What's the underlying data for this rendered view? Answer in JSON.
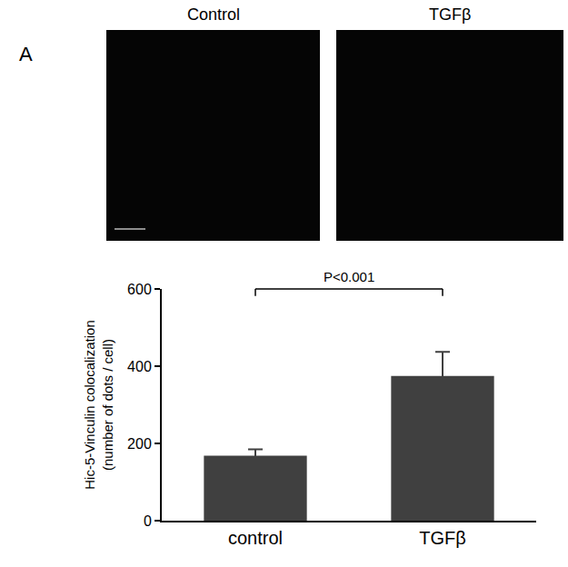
{
  "panel_label": "A",
  "images": [
    {
      "title": "Control"
    },
    {
      "title": "TGFβ"
    }
  ],
  "chart_data": {
    "type": "bar",
    "ylabel": "Hic-5-Vinculin colocalization\n(number of dots / cell)",
    "categories": [
      "control",
      "TGFβ"
    ],
    "values": [
      168,
      375
    ],
    "errors": [
      17,
      62
    ],
    "color": "#404040",
    "ylim": [
      0,
      600
    ],
    "yticks": [
      0,
      200,
      400,
      600
    ],
    "grid": false,
    "annotations": [
      {
        "text": "P<0.001",
        "from": "control",
        "to": "TGFβ"
      }
    ]
  }
}
